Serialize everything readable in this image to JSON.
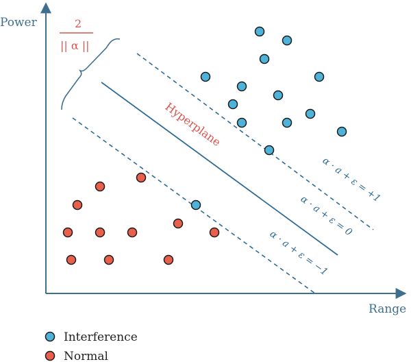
{
  "axes": {
    "y_label": "Power",
    "x_label": "Range"
  },
  "labels": {
    "hyperplane": "Hyperplane",
    "margin_numerator": "2",
    "margin_denominator": "|| α ||",
    "eq_plus": "α · a + ε = +1",
    "eq_zero": "α · a + ε = 0",
    "eq_minus": "α · a + ε = −1"
  },
  "legend": [
    {
      "label": "Interference",
      "color": "#4fb3d9"
    },
    {
      "label": "Normal",
      "color": "#e8604c"
    }
  ],
  "colors": {
    "axis": "#3f6f8f",
    "line": "#2f6b96",
    "interference": "#4fb3d9",
    "normal": "#e8604c",
    "accent": "#d9534f"
  },
  "icons": {
    "bracket": "curly-brace",
    "arrows": "axis-arrowheads"
  }
}
